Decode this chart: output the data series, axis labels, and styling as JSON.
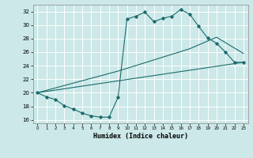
{
  "xlabel": "Humidex (Indice chaleur)",
  "ylabel": "",
  "bg_color": "#cce8e8",
  "grid_color": "#ffffff",
  "line_color": "#1a6b6b",
  "xlim": [
    -0.5,
    23.5
  ],
  "ylim": [
    15.5,
    33.0
  ],
  "xticks": [
    0,
    1,
    2,
    3,
    4,
    5,
    6,
    7,
    8,
    9,
    10,
    11,
    12,
    13,
    14,
    15,
    16,
    17,
    18,
    19,
    20,
    21,
    22,
    23
  ],
  "yticks": [
    16,
    18,
    20,
    22,
    24,
    26,
    28,
    30,
    32
  ],
  "line1_x": [
    0,
    1,
    2,
    3,
    4,
    5,
    6,
    7,
    8,
    9,
    10,
    11,
    12,
    13,
    14,
    15,
    16,
    17,
    18,
    19,
    20,
    21,
    22,
    23
  ],
  "line1_y": [
    20.0,
    19.4,
    19.0,
    18.1,
    17.6,
    17.0,
    16.6,
    16.4,
    16.4,
    19.3,
    30.9,
    31.3,
    31.9,
    30.5,
    31.0,
    31.3,
    32.3,
    31.6,
    29.8,
    28.1,
    27.3,
    26.0,
    24.5,
    24.5
  ],
  "line2_x": [
    0,
    23
  ],
  "line2_y": [
    20.0,
    24.5
  ],
  "line3_x": [
    0,
    9,
    17,
    20,
    23
  ],
  "line3_y": [
    20.0,
    23.2,
    26.5,
    28.2,
    25.8
  ],
  "marker": "D",
  "markersize": 1.8
}
